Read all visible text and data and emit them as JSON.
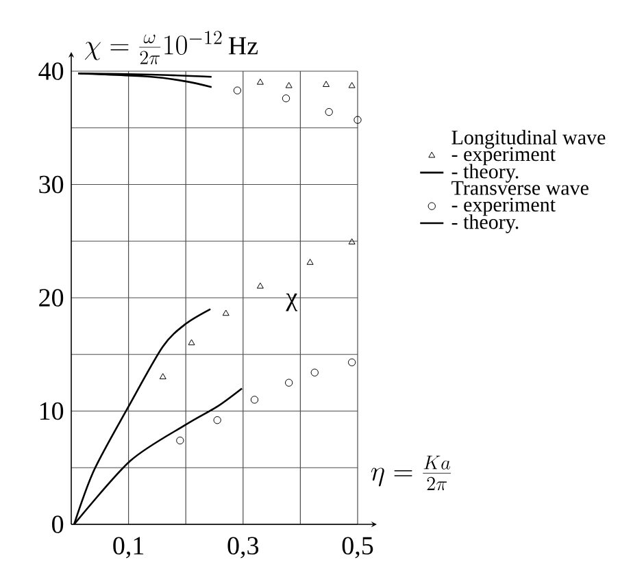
{
  "chart_data": {
    "type": "scatter",
    "xlabel": "\\eta=\\frac{Ka}{2\\pi}",
    "ylabel": "\\chi=\\frac{\\omega}{2\\pi}10^{-12}\\,\\mathrm{Hz}",
    "annotations": [
      "χ",
      "Longitudinal wave",
      "Transverse wave"
    ],
    "xlim": [
      0,
      0.5
    ],
    "ylim": [
      0,
      40
    ],
    "xticks": [
      {
        "value": 0.1,
        "label": "0,1"
      },
      {
        "value": 0.2,
        "label": null
      },
      {
        "value": 0.3,
        "label": "0,3"
      },
      {
        "value": 0.4,
        "label": null
      },
      {
        "value": 0.5,
        "label": "0,5"
      }
    ],
    "yticks": [
      0,
      {
        "value": 5,
        "label": null
      },
      10,
      {
        "value": 15,
        "label": null
      },
      20,
      {
        "value": 25,
        "label": null
      },
      30,
      {
        "value": 35,
        "label": null
      },
      40
    ],
    "grid": true,
    "legend": "right",
    "series": [
      {
        "name": "- experiment",
        "marker": "triangle",
        "color": "#000000",
        "x": [
          0.16,
          0.21,
          0.27,
          0.33,
          0.417,
          0.49,
          0.33,
          0.38,
          0.445,
          0.49
        ],
        "values": [
          13,
          16,
          18.6,
          21,
          23.1,
          24.9,
          39,
          38.7,
          38.8,
          38.7
        ]
      },
      {
        "name": "- theory.",
        "type": "line",
        "marker": "none",
        "line_style": "solid",
        "color": "#000000",
        "x": [
          0.005,
          0.04,
          0.1,
          0.16,
          0.2,
          0.243,
          null,
          0.012,
          0.14,
          0.245
        ],
        "values": [
          0,
          4.8,
          10.4,
          15.7,
          17.7,
          19,
          null,
          39.8,
          39.7,
          39.5
        ]
      },
      {
        "name": "- experiment",
        "marker": "circle",
        "color": "#000000",
        "x": [
          0.19,
          0.255,
          0.32,
          0.38,
          0.425,
          0.49,
          0.29,
          0.375,
          0.45,
          0.5
        ],
        "values": [
          7.4,
          9.2,
          11,
          12.5,
          13.4,
          14.3,
          38.3,
          37.6,
          36.4,
          35.7
        ]
      },
      {
        "name": "- theory.",
        "type": "line",
        "marker": "none",
        "line_style": "solid",
        "color": "#000000",
        "x": [
          0.005,
          0.103,
          0.2,
          0.255,
          0.298,
          null,
          0.012,
          0.14,
          0.2,
          0.245
        ],
        "values": [
          0,
          5.6,
          8.8,
          10.4,
          12,
          null,
          39.8,
          39.5,
          39.1,
          38.6
        ]
      }
    ]
  }
}
